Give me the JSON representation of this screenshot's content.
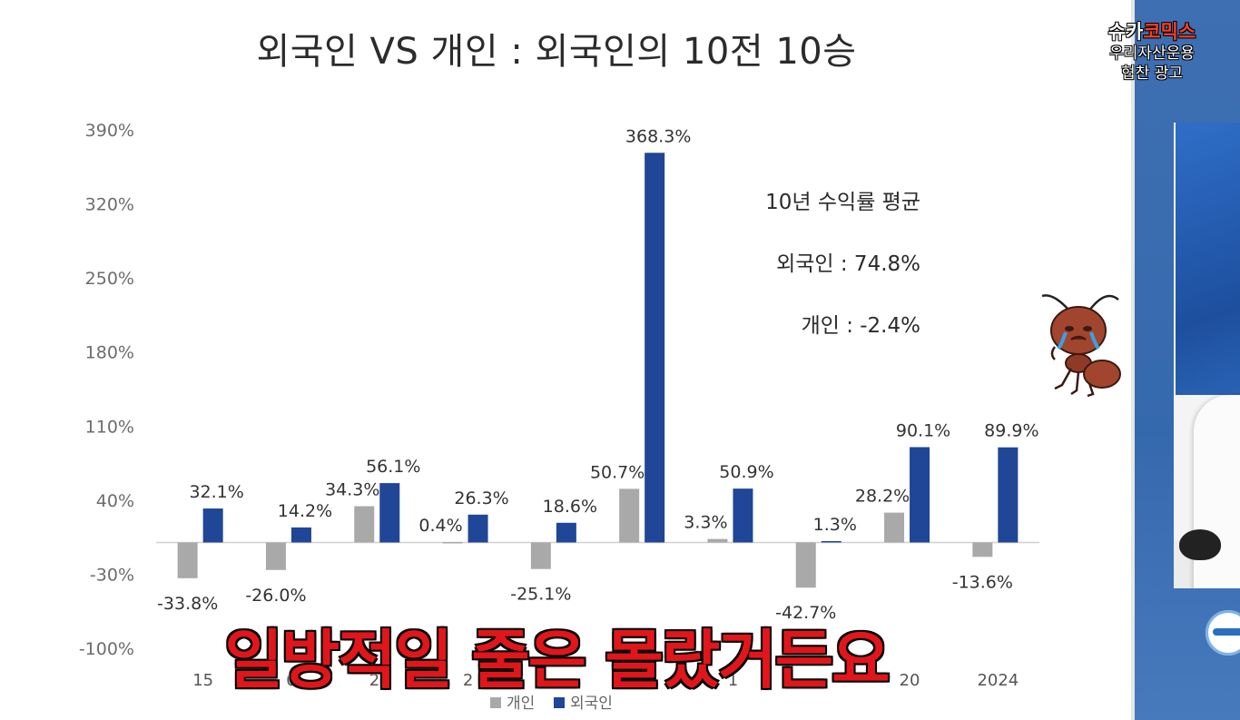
{
  "chart_data": {
    "type": "bar",
    "title": "외국인 VS 개인 : 외국인의 10전 10승",
    "categories": [
      "2015",
      "2016",
      "2017",
      "2018",
      "2019",
      "2020",
      "2021",
      "2022",
      "2023",
      "2024"
    ],
    "category_labels_visible": [
      "15",
      "0",
      "20",
      "2",
      "",
      "",
      "1",
      "",
      "20",
      "2024"
    ],
    "series": [
      {
        "name": "개인",
        "color": "#a9a9a9",
        "values": [
          -33.8,
          -26.0,
          34.3,
          0.4,
          -25.1,
          50.7,
          3.3,
          -42.7,
          28.2,
          -13.6
        ]
      },
      {
        "name": "외국인",
        "color": "#1f4697",
        "values": [
          32.1,
          14.2,
          56.1,
          26.3,
          18.6,
          368.3,
          50.9,
          1.3,
          90.1,
          89.9
        ]
      }
    ],
    "data_labels": {
      "개인": [
        "-33.8%",
        "-26.0%",
        "34.3%",
        "0.4%",
        "-25.1%",
        "50.7%",
        "3.3%",
        "-42.7%",
        "28.2%",
        "-13.6%"
      ],
      "외국인": [
        "32.1%",
        "14.2%",
        "56.1%",
        "26.3%",
        "18.6%",
        "368.3%",
        "50.9%",
        "1.3%",
        "90.1%",
        "89.9%"
      ]
    },
    "yticks": [
      390,
      320,
      250,
      180,
      110,
      40,
      -30,
      -100
    ],
    "ytick_labels": [
      "390%",
      "320%",
      "250%",
      "180%",
      "110%",
      "40%",
      "-30%",
      "-100%"
    ],
    "ylim": [
      -100,
      390
    ],
    "legend_position": "bottom",
    "grid": false
  },
  "summary": {
    "heading": "10년 수익률 평균",
    "foreign": "외국인 : 74.8%",
    "individual": "개인 : -2.4%"
  },
  "subtitle": "일방적일 줄은 몰랐거든요",
  "footnote": "",
  "badge": {
    "logo_left": "슈카",
    "logo_right": "코믹스",
    "line1": "우리자산운용",
    "line2": "협찬 광고"
  },
  "colors": {
    "individual_bar": "#a9a9a9",
    "foreign_bar": "#1f4697",
    "subtitle_fill": "#e0161b",
    "side_panel": "#3a6db1"
  },
  "icons": {
    "mascot": "crying-ant-icon",
    "side_logo": "channel-logo-icon"
  }
}
